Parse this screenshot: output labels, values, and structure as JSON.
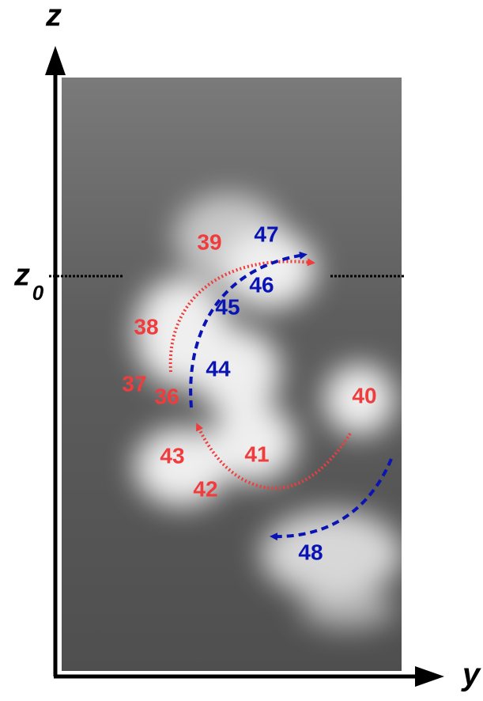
{
  "axes": {
    "vertical": "z",
    "horizontal": "y",
    "level": "z",
    "level_subscript": "0"
  },
  "red_labels": [
    "39",
    "38",
    "37",
    "36",
    "40",
    "41",
    "43",
    "42"
  ],
  "blue_labels": [
    "47",
    "46",
    "45",
    "44",
    "48"
  ]
}
